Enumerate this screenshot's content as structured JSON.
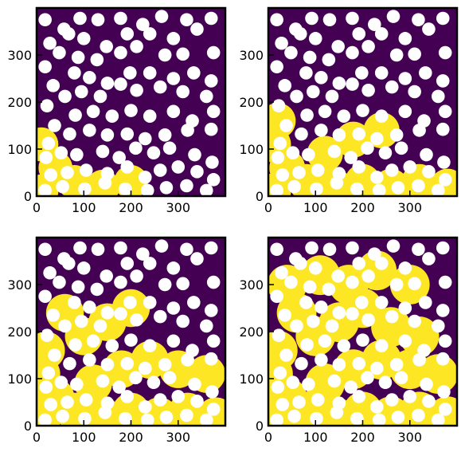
{
  "figure": {
    "rows": 2,
    "cols": 2,
    "colors": {
      "void": "#ffffff",
      "pore_empty": "#440154",
      "pore_filled": "#fde725",
      "frame": "#000000"
    }
  },
  "chart_data": [
    {
      "type": "heatmap",
      "panel": "top-left",
      "xlim": [
        0,
        400
      ],
      "ylim": [
        0,
        400
      ],
      "xticks": [
        0,
        100,
        200,
        300
      ],
      "yticks": [
        0,
        100,
        200,
        300
      ],
      "xtick_labels": [
        "0",
        "100",
        "200",
        "300"
      ],
      "ytick_labels": [
        "0",
        "100",
        "200",
        "300"
      ],
      "grid": false,
      "invaded_fraction": 0.2
    },
    {
      "type": "heatmap",
      "panel": "top-right",
      "xlim": [
        0,
        400
      ],
      "ylim": [
        0,
        400
      ],
      "xticks": [
        0,
        100,
        200,
        300
      ],
      "yticks": [
        0,
        100,
        200,
        300
      ],
      "xtick_labels": [
        "0",
        "100",
        "200",
        "300"
      ],
      "ytick_labels": [
        "0",
        "100",
        "200",
        "300"
      ],
      "grid": false,
      "invaded_fraction": 0.4
    },
    {
      "type": "heatmap",
      "panel": "bottom-left",
      "xlim": [
        0,
        400
      ],
      "ylim": [
        0,
        400
      ],
      "xticks": [
        0,
        100,
        200,
        300
      ],
      "yticks": [
        0,
        100,
        200,
        300
      ],
      "xtick_labels": [
        "0",
        "100",
        "200",
        "300"
      ],
      "ytick_labels": [
        "0",
        "100",
        "200",
        "300"
      ],
      "grid": false,
      "invaded_fraction": 0.6
    },
    {
      "type": "heatmap",
      "panel": "bottom-right",
      "xlim": [
        0,
        400
      ],
      "ylim": [
        0,
        400
      ],
      "xticks": [
        0,
        100,
        200,
        300
      ],
      "yticks": [
        0,
        100,
        200,
        300
      ],
      "xtick_labels": [
        "0",
        "100",
        "200",
        "300"
      ],
      "ytick_labels": [
        "0",
        "100",
        "200",
        "300"
      ],
      "grid": false,
      "invaded_fraction": 0.8
    }
  ]
}
